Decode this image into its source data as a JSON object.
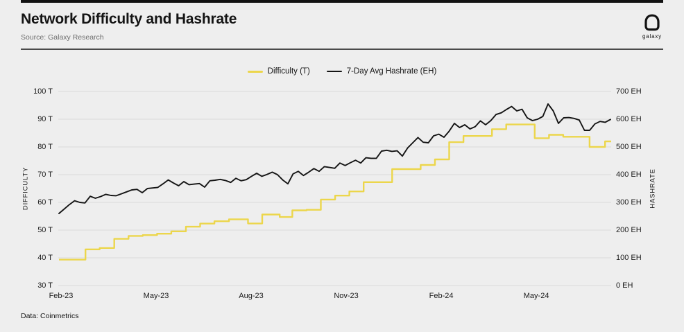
{
  "header": {
    "title": "Network Difficulty and Hashrate",
    "source": "Source: Galaxy Research",
    "logo_text": "galaxy"
  },
  "legend": [
    {
      "label": "Difficulty (T)",
      "color": "#ECD64B"
    },
    {
      "label": "7-Day Avg Hashrate (EH)",
      "color": "#141414"
    }
  ],
  "footer": {
    "data_note": "Data: Coinmetrics"
  },
  "colors": {
    "background": "#EEEEEE",
    "top_bar": "#121212",
    "divider": "#4A4A4A",
    "gridline": "#DBDBDB",
    "difficulty_yellow": "#ECD64B",
    "hashrate_black": "#141414"
  },
  "chart_data": {
    "type": "line",
    "title": "Network Difficulty and Hashrate",
    "x": {
      "tick_labels": [
        "Feb-23",
        "May-23",
        "Aug-23",
        "Nov-23",
        "Feb-24",
        "May-24"
      ],
      "tick_months": [
        0,
        3,
        6,
        9,
        12,
        15
      ],
      "t_max": 17.34,
      "grid": false
    },
    "y_left": {
      "label": "DIFFICULTY",
      "unit": "T",
      "min": 30,
      "max": 100,
      "tick_values": [
        30,
        40,
        50,
        60,
        70,
        80,
        90,
        100
      ],
      "tick_labels": [
        "30 T",
        "40 T",
        "50 T",
        "60 T",
        "70 T",
        "80 T",
        "90 T",
        "100 T"
      ],
      "grid": true
    },
    "y_right": {
      "label": "HASHRATE",
      "unit": "EH",
      "min": 0,
      "max": 700,
      "tick_values": [
        0,
        100,
        200,
        300,
        400,
        500,
        600,
        700
      ],
      "tick_labels": [
        "0 EH",
        "100 EH",
        "200 EH",
        "300 EH",
        "400 EH",
        "500 EH",
        "600 EH",
        "700 EH"
      ]
    },
    "series": [
      {
        "name": "Difficulty (T)",
        "axis": "left",
        "style": "step",
        "color": "#ECD64B",
        "points": [
          [
            0,
            39.35
          ],
          [
            0.77,
            43.05
          ],
          [
            1.22,
            43.55
          ],
          [
            1.68,
            46.84
          ],
          [
            2.13,
            47.89
          ],
          [
            2.58,
            48.2
          ],
          [
            3.03,
            48.71
          ],
          [
            3.48,
            49.55
          ],
          [
            3.94,
            51.23
          ],
          [
            4.39,
            52.35
          ],
          [
            4.84,
            53.2
          ],
          [
            5.3,
            53.91
          ],
          [
            5.9,
            52.39
          ],
          [
            6.35,
            55.62
          ],
          [
            6.9,
            54.73
          ],
          [
            7.3,
            57.12
          ],
          [
            7.75,
            57.32
          ],
          [
            8.2,
            61.03
          ],
          [
            8.65,
            62.46
          ],
          [
            9.1,
            63.96
          ],
          [
            9.55,
            67.3
          ],
          [
            10.45,
            72.01
          ],
          [
            11.35,
            73.5
          ],
          [
            11.8,
            75.5
          ],
          [
            12.25,
            81.73
          ],
          [
            12.7,
            83.95
          ],
          [
            13.6,
            86.39
          ],
          [
            14.05,
            88.1
          ],
          [
            14.95,
            83.15
          ],
          [
            15.4,
            84.38
          ],
          [
            15.85,
            83.67
          ],
          [
            16.68,
            80.0
          ],
          [
            17.17,
            82.0
          ]
        ]
      },
      {
        "name": "7-Day Avg Hashrate (EH)",
        "axis": "right",
        "style": "line",
        "color": "#141414",
        "t_start": 0,
        "t_end": 17.34,
        "values": [
          260,
          276,
          292,
          306,
          300,
          298,
          322,
          315,
          321,
          329,
          325,
          324,
          331,
          338,
          345,
          347,
          335,
          350,
          352,
          354,
          367,
          381,
          370,
          360,
          375,
          364,
          366,
          368,
          355,
          378,
          380,
          383,
          379,
          372,
          387,
          378,
          382,
          394,
          405,
          394,
          401,
          409,
          400,
          381,
          367,
          403,
          412,
          397,
          409,
          422,
          412,
          429,
          426,
          423,
          442,
          433,
          443,
          452,
          442,
          461,
          459,
          459,
          485,
          488,
          484,
          486,
          467,
          496,
          515,
          534,
          517,
          515,
          540,
          546,
          535,
          557,
          585,
          570,
          580,
          565,
          573,
          594,
          580,
          595,
          617,
          623,
          635,
          646,
          630,
          636,
          605,
          595,
          600,
          610,
          655,
          630,
          585,
          605,
          606,
          603,
          597,
          560,
          560,
          583,
          592,
          589,
          599
        ]
      }
    ]
  }
}
